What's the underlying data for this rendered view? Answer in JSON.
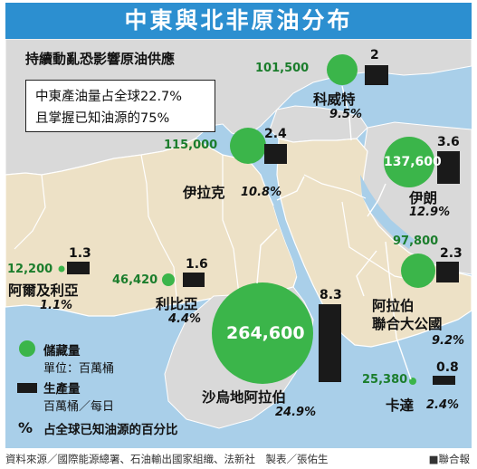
{
  "title": "中東與北非原油分布",
  "subtitle": "持續動亂恐影響原油供應",
  "note": {
    "line1": "中東產油量占全球22.7%",
    "line2": "且掌握已知油源的75%"
  },
  "countries": {
    "kuwait": {
      "name": "科威特",
      "reserve": "101,500",
      "production": "2",
      "percent": "9.5%"
    },
    "iraq": {
      "name": "伊拉克",
      "reserve": "115,000",
      "production": "2.4",
      "percent": "10.8%"
    },
    "iran": {
      "name": "伊朗",
      "reserve": "137,600",
      "production": "3.6",
      "percent": "12.9%"
    },
    "algeria": {
      "name": "阿爾及利亞",
      "reserve": "12,200",
      "production": "1.3",
      "percent": "1.1%"
    },
    "libya": {
      "name": "利比亞",
      "reserve": "46,420",
      "production": "1.6",
      "percent": "4.4%"
    },
    "uae": {
      "name_line1": "阿拉伯",
      "name_line2": "聯合大公國",
      "reserve": "97,800",
      "production": "2.3",
      "percent": "9.2%"
    },
    "saudi": {
      "name": "沙烏地阿拉伯",
      "reserve": "264,600",
      "production": "8.3",
      "percent": "24.9%"
    },
    "qatar": {
      "name": "卡達",
      "reserve": "25,380",
      "production": "0.8",
      "percent": "2.4%"
    }
  },
  "legend": {
    "reserves_label": "儲藏量",
    "reserves_unit": "單位：百萬桶",
    "production_label": "生產量",
    "production_unit": "百萬桶／每日",
    "percent_symbol": "%",
    "percent_label": "占全球已知油源的百分比"
  },
  "footer": {
    "source": "資料來源／國際能源總署、石油輸出國家組織、法新社　製表／張佑生",
    "publisher": "■聯合報"
  },
  "colors": {
    "title_bar": "#2c8fd0",
    "sea": "#a9cfe9",
    "land_beige": "#ede1c6",
    "land_gray": "#d9d9d9",
    "reserve_green": "#3bb54a",
    "production_black": "#1a1a1a"
  }
}
